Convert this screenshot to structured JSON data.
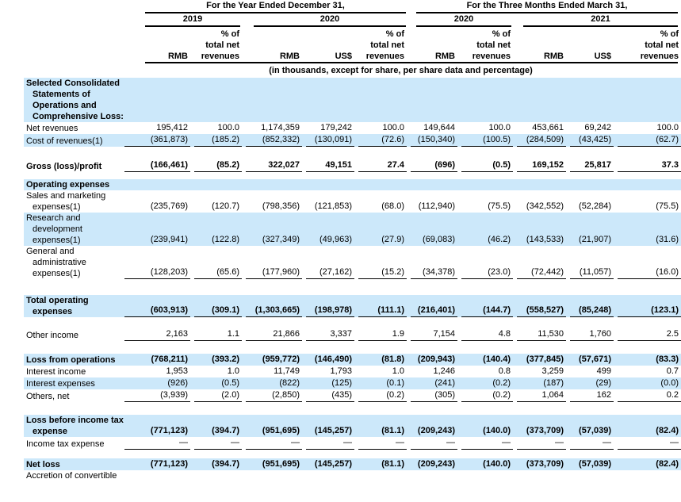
{
  "table": {
    "header": {
      "group_year": "For the Year Ended December 31,",
      "group_quarter": "For the Three Months Ended March 31,",
      "years": [
        "2019",
        "2020",
        "2020",
        "2021"
      ],
      "rmb": "RMB",
      "usd": "US$",
      "pct": [
        "% of",
        "total net",
        "revenues"
      ],
      "note": "(in thousands, except for share, per share data and percentage)"
    },
    "rows": [
      {
        "type": "section",
        "bg": "blue",
        "bold": true,
        "label_lines": [
          "Selected Consolidated",
          "Statements of",
          "Operations and",
          "Comprehensive Loss:"
        ]
      },
      {
        "type": "data",
        "bg": "white",
        "bold": false,
        "underline": false,
        "label_lines": [
          "Net revenues"
        ],
        "values": [
          "195,412",
          "100.0",
          "1,174,359",
          "179,242",
          "100.0",
          "149,644",
          "100.0",
          "453,661",
          "69,242",
          "100.0"
        ]
      },
      {
        "type": "data",
        "bg": "blue",
        "bold": false,
        "underline": true,
        "label_lines": [
          "Cost of revenues(1)"
        ],
        "values": [
          "(361,873)",
          "(185.2)",
          "(852,332)",
          "(130,091)",
          "(72.6)",
          "(150,340)",
          "(100.5)",
          "(284,509)",
          "(43,425)",
          "(62.7)"
        ]
      },
      {
        "type": "spacer",
        "height": 16
      },
      {
        "type": "data",
        "bg": "white",
        "bold": true,
        "underline": true,
        "label_lines": [
          "Gross (loss)/profit"
        ],
        "values": [
          "(166,461)",
          "(85.2)",
          "322,027",
          "49,151",
          "27.4",
          "(696)",
          "(0.5)",
          "169,152",
          "25,817",
          "37.3"
        ]
      },
      {
        "type": "spacer",
        "height": 9
      },
      {
        "type": "section",
        "bg": "blue",
        "bold": true,
        "label_lines": [
          "Operating expenses"
        ]
      },
      {
        "type": "data",
        "bg": "white",
        "bold": false,
        "underline": false,
        "label_lines": [
          "Sales and marketing",
          "expenses(1)"
        ],
        "values": [
          "(235,769)",
          "(120.7)",
          "(798,356)",
          "(121,853)",
          "(68.0)",
          "(112,940)",
          "(75.5)",
          "(342,552)",
          "(52,284)",
          "(75.5)"
        ]
      },
      {
        "type": "data",
        "bg": "blue",
        "bold": false,
        "underline": false,
        "label_lines": [
          "Research and",
          "development",
          "expenses(1)"
        ],
        "values": [
          "(239,941)",
          "(122.8)",
          "(327,349)",
          "(49,963)",
          "(27.9)",
          "(69,083)",
          "(46.2)",
          "(143,533)",
          "(21,907)",
          "(31.6)"
        ]
      },
      {
        "type": "data",
        "bg": "white",
        "bold": false,
        "underline": true,
        "label_lines": [
          "General and",
          "administrative",
          "expenses(1)"
        ],
        "values": [
          "(128,203)",
          "(65.6)",
          "(177,960)",
          "(27,162)",
          "(15.2)",
          "(34,378)",
          "(23.0)",
          "(72,442)",
          "(11,057)",
          "(16.0)"
        ]
      },
      {
        "type": "spacer",
        "height": 20
      },
      {
        "type": "data",
        "bg": "blue",
        "bold": true,
        "underline": true,
        "label_lines": [
          "Total operating",
          "expenses"
        ],
        "values": [
          "(603,913)",
          "(309.1)",
          "(1,303,665)",
          "(198,978)",
          "(111.1)",
          "(216,401)",
          "(144.7)",
          "(558,527)",
          "(85,248)",
          "(123.1)"
        ]
      },
      {
        "type": "spacer",
        "height": 14
      },
      {
        "type": "data",
        "bg": "white",
        "bold": false,
        "underline": true,
        "label_lines": [
          "Other income"
        ],
        "values": [
          "2,163",
          "1.1",
          "21,866",
          "3,337",
          "1.9",
          "7,154",
          "4.8",
          "11,530",
          "1,760",
          "2.5"
        ]
      },
      {
        "type": "spacer",
        "height": 16
      },
      {
        "type": "data",
        "bg": "blue",
        "bold": true,
        "underline": false,
        "label_lines": [
          "Loss from operations"
        ],
        "values": [
          "(768,211)",
          "(393.2)",
          "(959,772)",
          "(146,490)",
          "(81.8)",
          "(209,943)",
          "(140.4)",
          "(377,845)",
          "(57,671)",
          "(83.3)"
        ]
      },
      {
        "type": "data",
        "bg": "white",
        "bold": false,
        "underline": false,
        "label_lines": [
          "Interest income"
        ],
        "values": [
          "1,953",
          "1.0",
          "11,749",
          "1,793",
          "1.0",
          "1,246",
          "0.8",
          "3,259",
          "499",
          "0.7"
        ]
      },
      {
        "type": "data",
        "bg": "blue",
        "bold": false,
        "underline": false,
        "label_lines": [
          "Interest expenses"
        ],
        "values": [
          "(926)",
          "(0.5)",
          "(822)",
          "(125)",
          "(0.1)",
          "(241)",
          "(0.2)",
          "(187)",
          "(29)",
          "(0.0)"
        ]
      },
      {
        "type": "data",
        "bg": "white",
        "bold": false,
        "underline": true,
        "label_lines": [
          "Others, net"
        ],
        "values": [
          "(3,939)",
          "(2.0)",
          "(2,850)",
          "(435)",
          "(0.2)",
          "(305)",
          "(0.2)",
          "1,064",
          "162",
          "0.2"
        ]
      },
      {
        "type": "spacer",
        "height": 16
      },
      {
        "type": "data",
        "bg": "blue",
        "bold": true,
        "underline": false,
        "label_lines": [
          "Loss before income tax",
          "expense"
        ],
        "values": [
          "(771,123)",
          "(394.7)",
          "(951,695)",
          "(145,257)",
          "(81.1)",
          "(209,243)",
          "(140.0)",
          "(373,709)",
          "(57,039)",
          "(82.4)"
        ]
      },
      {
        "type": "data",
        "bg": "white",
        "bold": false,
        "underline": true,
        "label_lines": [
          "Income tax expense"
        ],
        "values": [
          "—",
          "—",
          "—",
          "—",
          "—",
          "—",
          "—",
          "—",
          "—",
          "—"
        ]
      },
      {
        "type": "spacer",
        "height": 11
      },
      {
        "type": "data",
        "bg": "blue",
        "bold": true,
        "underline": false,
        "label_lines": [
          "Net loss"
        ],
        "values": [
          "(771,123)",
          "(394.7)",
          "(951,695)",
          "(145,257)",
          "(81.1)",
          "(209,243)",
          "(140.0)",
          "(373,709)",
          "(57,039)",
          "(82.4)"
        ]
      },
      {
        "type": "data",
        "bg": "white",
        "bold": false,
        "underline": false,
        "label_lines": [
          "Accretion of convertible"
        ],
        "values": [
          "",
          "",
          "",
          "",
          "",
          "",
          "",
          "",
          "",
          ""
        ]
      }
    ]
  }
}
